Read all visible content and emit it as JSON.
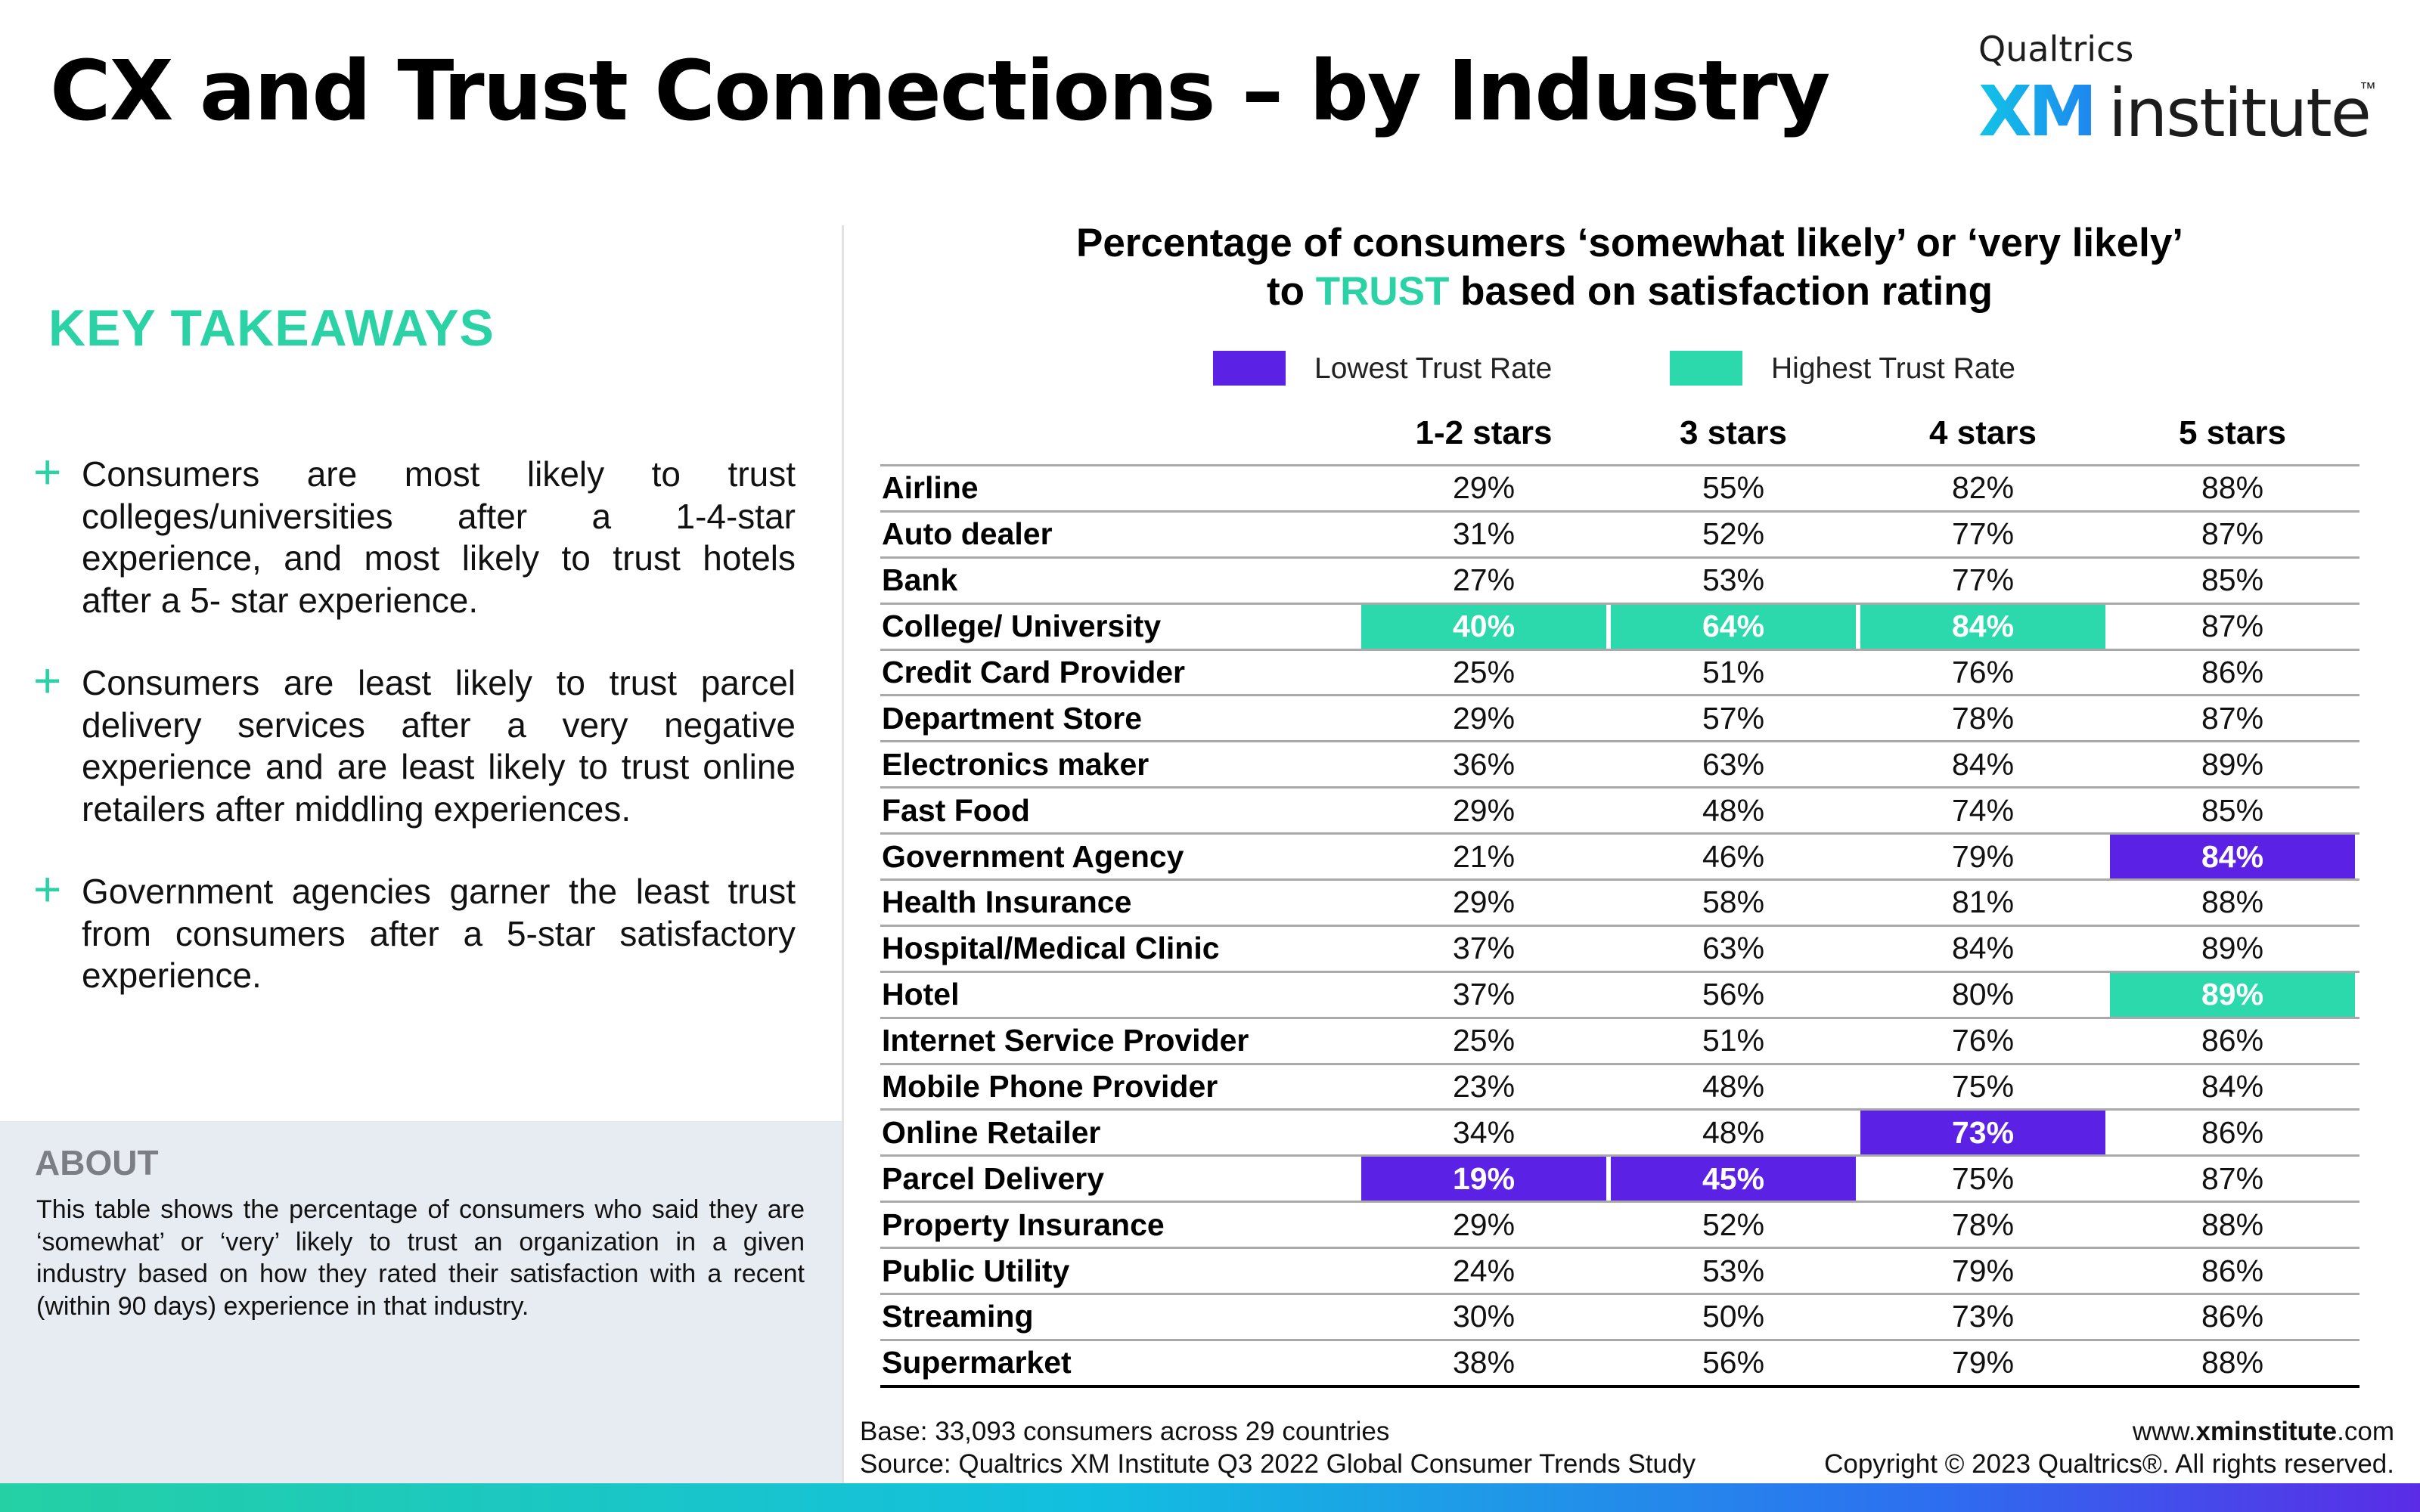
{
  "title": "CX and Trust Connections – by Industry",
  "logo": {
    "top": "Qualtrics",
    "xm": "XM",
    "word": "institute",
    "tm": "™"
  },
  "key_takeaways": {
    "heading": "KEY TAKEAWAYS",
    "items": [
      "Consumers are most likely to trust colleges/universities after a 1-4-star experience, and most likely to trust hotels after a 5- star experience.",
      "Consumers are least likely to trust parcel delivery services after a very negative experience and are least likely to trust online retailers after middling experiences.",
      "Government agencies garner the least trust from consumers after a 5-star satisfactory experience."
    ]
  },
  "about": {
    "heading": "ABOUT",
    "text": "This table shows the percentage of consumers who said they are ‘somewhat’ or ‘very’ likely to trust an organization in a given industry based on how they rated their satisfaction with a recent (within 90 days) experience in that industry."
  },
  "colors": {
    "accent": "#2bd2a6",
    "low": "#5b22e6",
    "high": "#2bd9ac"
  },
  "chart_data": {
    "type": "table",
    "title_line1": "Percentage of consumers ‘somewhat likely’ or ‘very likely’",
    "title_line2_pre": "to ",
    "title_line2_accent": "TRUST",
    "title_line2_post": " based on satisfaction rating",
    "legend": [
      {
        "label": "Lowest Trust Rate",
        "color": "#5b22e6"
      },
      {
        "label": "Highest Trust Rate",
        "color": "#2bd9ac"
      }
    ],
    "columns": [
      "1-2 stars",
      "3 stars",
      "4 stars",
      "5 stars"
    ],
    "rows": [
      {
        "label": "Airline",
        "values": [
          "29%",
          "55%",
          "82%",
          "88%"
        ],
        "highlight": [
          null,
          null,
          null,
          null
        ]
      },
      {
        "label": "Auto dealer",
        "values": [
          "31%",
          "52%",
          "77%",
          "87%"
        ],
        "highlight": [
          null,
          null,
          null,
          null
        ]
      },
      {
        "label": "Bank",
        "values": [
          "27%",
          "53%",
          "77%",
          "85%"
        ],
        "highlight": [
          null,
          null,
          null,
          null
        ]
      },
      {
        "label": "College/ University",
        "values": [
          "40%",
          "64%",
          "84%",
          "87%"
        ],
        "highlight": [
          "high",
          "high",
          "high",
          null
        ]
      },
      {
        "label": "Credit Card Provider",
        "values": [
          "25%",
          "51%",
          "76%",
          "86%"
        ],
        "highlight": [
          null,
          null,
          null,
          null
        ]
      },
      {
        "label": "Department Store",
        "values": [
          "29%",
          "57%",
          "78%",
          "87%"
        ],
        "highlight": [
          null,
          null,
          null,
          null
        ]
      },
      {
        "label": "Electronics maker",
        "values": [
          "36%",
          "63%",
          "84%",
          "89%"
        ],
        "highlight": [
          null,
          null,
          null,
          null
        ]
      },
      {
        "label": "Fast Food",
        "values": [
          "29%",
          "48%",
          "74%",
          "85%"
        ],
        "highlight": [
          null,
          null,
          null,
          null
        ]
      },
      {
        "label": "Government Agency",
        "values": [
          "21%",
          "46%",
          "79%",
          "84%"
        ],
        "highlight": [
          null,
          null,
          null,
          "low"
        ]
      },
      {
        "label": "Health Insurance",
        "values": [
          "29%",
          "58%",
          "81%",
          "88%"
        ],
        "highlight": [
          null,
          null,
          null,
          null
        ]
      },
      {
        "label": "Hospital/Medical Clinic",
        "values": [
          "37%",
          "63%",
          "84%",
          "89%"
        ],
        "highlight": [
          null,
          null,
          null,
          null
        ]
      },
      {
        "label": "Hotel",
        "values": [
          "37%",
          "56%",
          "80%",
          "89%"
        ],
        "highlight": [
          null,
          null,
          null,
          "high"
        ]
      },
      {
        "label": "Internet Service Provider",
        "values": [
          "25%",
          "51%",
          "76%",
          "86%"
        ],
        "highlight": [
          null,
          null,
          null,
          null
        ]
      },
      {
        "label": "Mobile Phone Provider",
        "values": [
          "23%",
          "48%",
          "75%",
          "84%"
        ],
        "highlight": [
          null,
          null,
          null,
          null
        ]
      },
      {
        "label": "Online Retailer",
        "values": [
          "34%",
          "48%",
          "73%",
          "86%"
        ],
        "highlight": [
          null,
          null,
          "low",
          null
        ]
      },
      {
        "label": "Parcel Delivery",
        "values": [
          "19%",
          "45%",
          "75%",
          "87%"
        ],
        "highlight": [
          "low",
          "low",
          null,
          null
        ]
      },
      {
        "label": "Property Insurance",
        "values": [
          "29%",
          "52%",
          "78%",
          "88%"
        ],
        "highlight": [
          null,
          null,
          null,
          null
        ]
      },
      {
        "label": "Public Utility",
        "values": [
          "24%",
          "53%",
          "79%",
          "86%"
        ],
        "highlight": [
          null,
          null,
          null,
          null
        ]
      },
      {
        "label": "Streaming",
        "values": [
          "30%",
          "50%",
          "73%",
          "86%"
        ],
        "highlight": [
          null,
          null,
          null,
          null
        ]
      },
      {
        "label": "Supermarket",
        "values": [
          "38%",
          "56%",
          "79%",
          "88%"
        ],
        "highlight": [
          null,
          null,
          null,
          null
        ]
      }
    ]
  },
  "footer": {
    "base": "Base: 33,093 consumers across 29 countries",
    "source": "Source: Qualtrics XM Institute Q3 2022 Global Consumer Trends Study",
    "url_pre": "www.",
    "url_bold": "xminstitute",
    "url_post": ".com",
    "copyright": "Copyright © 2023 Qualtrics®. All rights reserved."
  }
}
